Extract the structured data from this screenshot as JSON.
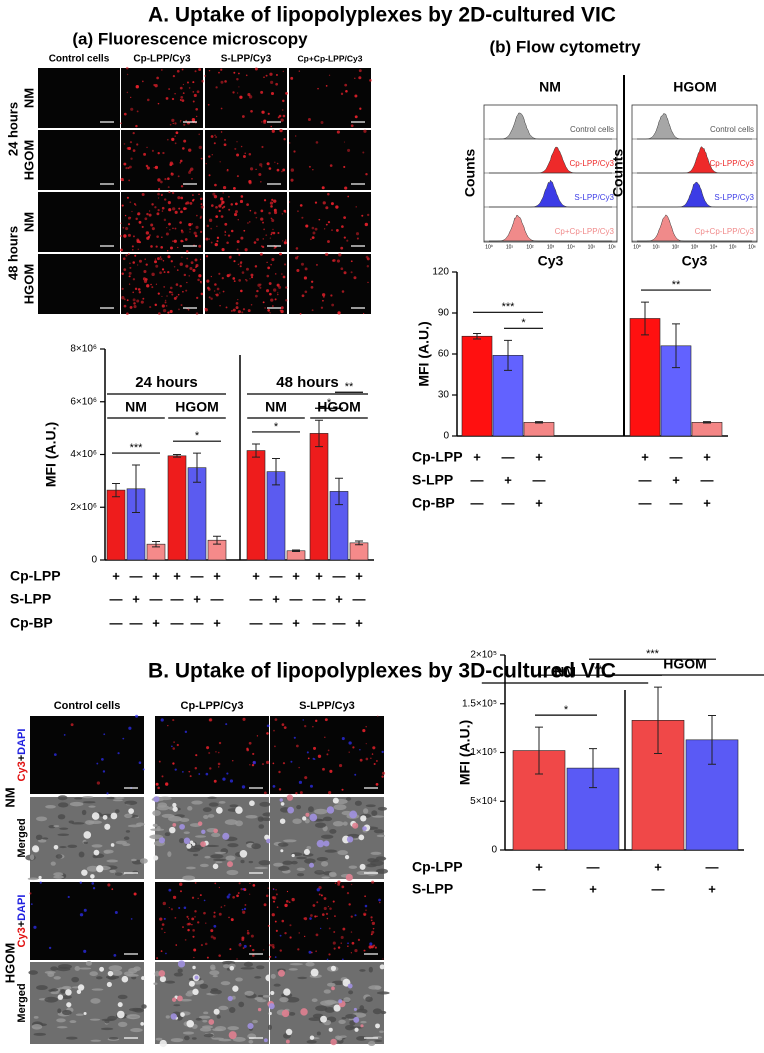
{
  "title_a": "A. Uptake of lipopolyplexes by 2D-cultured VIC",
  "fluorescence": {
    "title": "(a) Fluorescence microscopy",
    "columns": [
      "Control cells",
      "Cp-LPP/Cy3",
      "S-LPP/Cy3",
      "Cp+Cp-LPP/Cy3"
    ],
    "times": [
      "24 hours",
      "48 hours"
    ],
    "rows": [
      "NM",
      "HGOM"
    ]
  },
  "flow": {
    "title": "(b) Flow cytometry",
    "ylabel": "Counts",
    "xlabel": "Cy3",
    "xlim": [
      0,
      6
    ],
    "xticks": [
      {
        "value": 0,
        "label": "10⁰"
      },
      {
        "value": 1,
        "label": "10¹"
      },
      {
        "value": 2,
        "label": "10²"
      },
      {
        "value": 3,
        "label": "10³"
      },
      {
        "value": 4,
        "label": "10⁴"
      },
      {
        "value": 5,
        "label": "10⁵"
      },
      {
        "value": 6,
        "label": "10⁶"
      }
    ],
    "samples": [
      {
        "label": "Control cells",
        "color": "#a6a6a6"
      },
      {
        "label": "Cp-LPP/Cy3",
        "color": "#ee2a2a"
      },
      {
        "label": "S-LPP/Cy3",
        "color": "#3c3ce6"
      },
      {
        "label": "Cp+Cp-LPP/Cy3",
        "color": "#f08a8a"
      }
    ],
    "peaks": [
      [
        1.5,
        3.3,
        3.0,
        1.4
      ],
      [
        1.4,
        3.4,
        3.1,
        1.5
      ]
    ]
  },
  "title_b": "B. Uptake of lipopolyplexes by 3D-cultured VIC",
  "microscopy_3d": {
    "columns": [
      "Control cells",
      "Cp-LPP/Cy3",
      "S-LPP/Cy3"
    ],
    "groups": [
      "NM",
      "HGOM"
    ],
    "stain": [
      "Cy3",
      "+",
      "DAPI"
    ],
    "merged": "Merged"
  },
  "chart_data": [
    {
      "type": "bar",
      "ylabel": "MFI (A.U.)",
      "categories": [
        "NM",
        "HGOM",
        "NM",
        "HGOM"
      ],
      "supergroups": [
        "24 hours",
        "48 hours"
      ],
      "ylim": [
        0,
        8000000
      ],
      "yticks": [
        0,
        {
          "value": 2000000,
          "label": "2×10⁶"
        },
        {
          "value": 4000000,
          "label": "4×10⁶"
        },
        {
          "value": 6000000,
          "label": "6×10⁶"
        },
        {
          "value": 8000000,
          "label": "8×10⁶"
        }
      ],
      "series": [
        {
          "name": "Cp-LPP",
          "color": "#ee1c1c",
          "values": [
            2650000,
            3950000,
            4150000,
            4800000
          ],
          "errors": [
            250000,
            50000,
            250000,
            500000
          ],
          "marks": [
            "+",
            "—",
            "+"
          ]
        },
        {
          "name": "S-LPP",
          "color": "#5b5bf0",
          "values": [
            2700000,
            3500000,
            3350000,
            2600000
          ],
          "errors": [
            900000,
            550000,
            500000,
            500000
          ],
          "marks": [
            "—",
            "+",
            "—"
          ]
        },
        {
          "name": "Cp-BP",
          "color": "#f58a8a",
          "values": [
            600000,
            750000,
            350000,
            650000
          ],
          "errors": [
            100000,
            150000,
            30000,
            70000
          ],
          "marks": [
            "—",
            "—",
            "+"
          ]
        }
      ],
      "significance": [
        {
          "label": "***",
          "from": [
            0,
            0
          ],
          "to": [
            0,
            2
          ]
        },
        {
          "label": "*",
          "from": [
            1,
            0
          ],
          "to": [
            1,
            2
          ]
        },
        {
          "label": "*",
          "from": [
            2,
            0
          ],
          "to": [
            2,
            2
          ]
        },
        {
          "label": "*",
          "from": [
            3,
            0
          ],
          "to": [
            3,
            1
          ]
        },
        {
          "label": "**",
          "from": [
            3,
            1
          ],
          "to": [
            3,
            2
          ]
        }
      ]
    },
    {
      "type": "bar",
      "ylabel": "MFI (A.U.)",
      "categories": [
        "NM",
        "HGOM"
      ],
      "ylim": [
        0,
        120
      ],
      "yticks": [
        0,
        30,
        60,
        90,
        120
      ],
      "series": [
        {
          "name": "Cp-LPP",
          "color": "#ff1010",
          "values": [
            73,
            86
          ],
          "errors": [
            2,
            12
          ],
          "marks": [
            "+",
            "—",
            "+"
          ]
        },
        {
          "name": "S-LPP",
          "color": "#6262ff",
          "values": [
            59,
            66
          ],
          "errors": [
            11,
            16
          ],
          "marks": [
            "—",
            "+",
            "—"
          ]
        },
        {
          "name": "Cp-BP",
          "color": "#f48686",
          "values": [
            10,
            10
          ],
          "errors": [
            0.5,
            0.5
          ],
          "marks": [
            "—",
            "—",
            "+"
          ]
        }
      ],
      "significance": [
        {
          "label": "*",
          "from": [
            0,
            1
          ],
          "to": [
            0,
            2
          ]
        },
        {
          "label": "***",
          "from": [
            0,
            0
          ],
          "to": [
            0,
            2
          ]
        },
        {
          "label": "**",
          "from": [
            1,
            0
          ],
          "to": [
            1,
            2
          ]
        }
      ]
    },
    {
      "type": "bar",
      "ylabel": "MFI (A.U.)",
      "categories": [
        "NM",
        "HGOM"
      ],
      "ylim": [
        0,
        200000
      ],
      "yticks": [
        0,
        {
          "value": 50000,
          "label": "5×10⁴"
        },
        {
          "value": 100000,
          "label": "1×10⁵"
        },
        {
          "value": 150000,
          "label": "1.5×10⁵"
        },
        {
          "value": 200000,
          "label": "2×10⁵"
        }
      ],
      "series": [
        {
          "name": "Cp-LPP",
          "color": "#f04848",
          "values": [
            102000,
            133000
          ],
          "errors": [
            24000,
            34000
          ],
          "marks": [
            "+",
            "—"
          ]
        },
        {
          "name": "S-LPP",
          "color": "#5a5af5",
          "values": [
            84000,
            113000
          ],
          "errors": [
            20000,
            25000
          ],
          "marks": [
            "—",
            "+"
          ]
        }
      ],
      "significance": [
        {
          "label": "*",
          "from": [
            0,
            0
          ],
          "to": [
            0,
            1
          ]
        },
        {
          "label": "**",
          "from": [
            0,
            0
          ],
          "to": [
            1,
            0
          ]
        },
        {
          "label": "***",
          "from": [
            0,
            1
          ],
          "to": [
            1,
            1
          ]
        }
      ]
    }
  ]
}
